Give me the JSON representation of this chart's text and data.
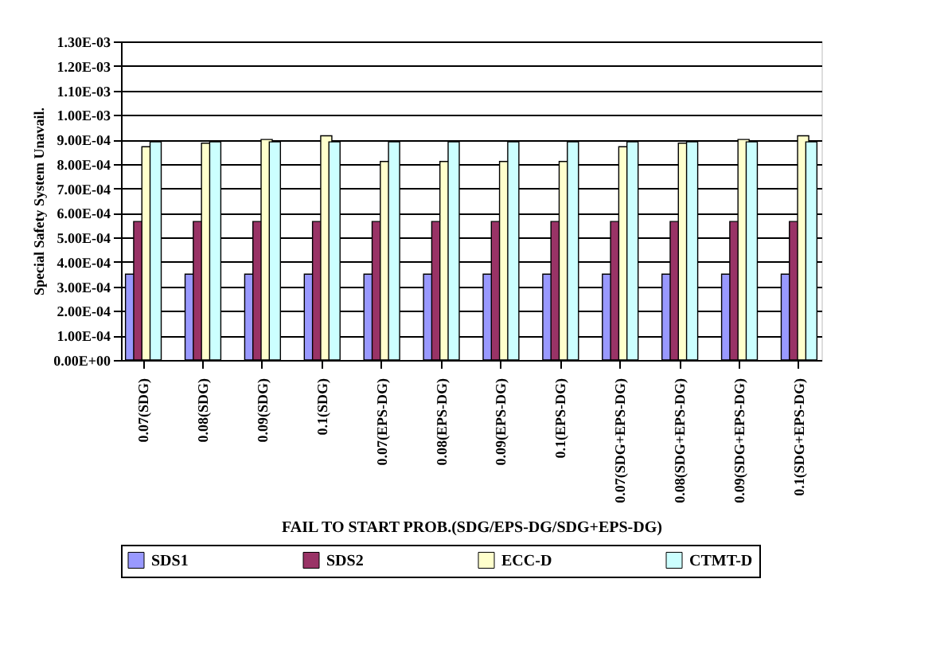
{
  "chart_data": {
    "type": "bar",
    "xlabel": "FAIL TO START PROB.(SDG/EPS-DG/SDG+EPS-DG)",
    "ylabel": "Special Safety System Unavail.",
    "categories": [
      "0.07(SDG)",
      "0.08(SDG)",
      "0.09(SDG)",
      "0.1(SDG)",
      "0.07(EPS-DG)",
      "0.08(EPS-DG)",
      "0.09(EPS-DG)",
      "0.1(EPS-DG)",
      "0.07(SDG+EPS-DG)",
      "0.08(SDG+EPS-DG)",
      "0.09(SDG+EPS-DG)",
      "0.1(SDG+EPS-DG)"
    ],
    "series": [
      {
        "name": "SDS1",
        "color": "#9999ff",
        "values": [
          0.00035,
          0.00035,
          0.00035,
          0.00035,
          0.00035,
          0.00035,
          0.00035,
          0.00035,
          0.00035,
          0.00035,
          0.00035,
          0.00035
        ]
      },
      {
        "name": "SDS2",
        "color": "#993366",
        "values": [
          0.000565,
          0.000565,
          0.000565,
          0.000565,
          0.000565,
          0.000565,
          0.000565,
          0.000565,
          0.000565,
          0.000565,
          0.000565,
          0.000565
        ]
      },
      {
        "name": "ECC-D",
        "color": "#ffffcc",
        "values": [
          0.00087,
          0.000885,
          0.0009,
          0.000915,
          0.00081,
          0.00081,
          0.00081,
          0.00081,
          0.00087,
          0.000885,
          0.0009,
          0.000915
        ]
      },
      {
        "name": "CTMT-D",
        "color": "#ccffff",
        "values": [
          0.00089,
          0.00089,
          0.00089,
          0.00089,
          0.00089,
          0.00089,
          0.00089,
          0.00089,
          0.00089,
          0.00089,
          0.00089,
          0.00089
        ]
      }
    ],
    "ylim": [
      0,
      0.0013
    ],
    "yticks": [
      {
        "value": 0,
        "label": "0.00E+00"
      },
      {
        "value": 0.0001,
        "label": "1.00E-04"
      },
      {
        "value": 0.0002,
        "label": "2.00E-04"
      },
      {
        "value": 0.0003,
        "label": "3.00E-04"
      },
      {
        "value": 0.0004,
        "label": "4.00E-04"
      },
      {
        "value": 0.0005,
        "label": "5.00E-04"
      },
      {
        "value": 0.0006,
        "label": "6.00E-04"
      },
      {
        "value": 0.0007,
        "label": "7.00E-04"
      },
      {
        "value": 0.0008,
        "label": "8.00E-04"
      },
      {
        "value": 0.0009,
        "label": "9.00E-04"
      },
      {
        "value": 0.001,
        "label": "1.00E-03"
      },
      {
        "value": 0.0011,
        "label": "1.10E-03"
      },
      {
        "value": 0.0012,
        "label": "1.20E-03"
      },
      {
        "value": 0.0013,
        "label": "1.30E-03"
      }
    ],
    "grid": "y",
    "legend": "bottom"
  }
}
